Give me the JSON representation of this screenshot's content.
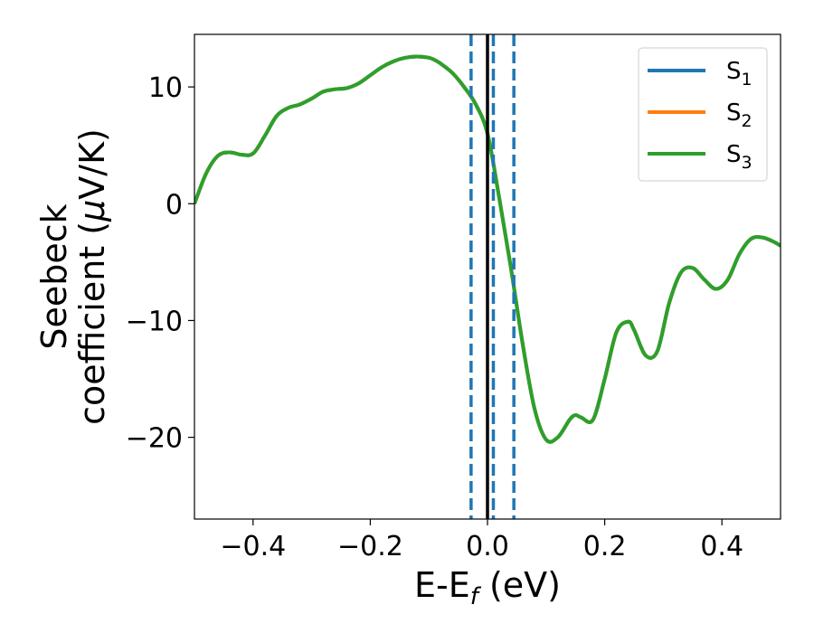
{
  "chart_data": {
    "type": "line",
    "xlabel": {
      "main": "E-E",
      "sub": "f",
      "tail": " (eV)"
    },
    "ylabel": {
      "line1": "Seebeck",
      "line2_pre": "coefficient  (",
      "line2_mu": "μ",
      "line2_post": "V/K)"
    },
    "xlim": [
      -0.5,
      0.5
    ],
    "ylim": [
      -27,
      14.5
    ],
    "xticks": [
      -0.4,
      -0.2,
      0.0,
      0.2,
      0.4
    ],
    "xtick_labels": [
      "−0.4",
      "−0.2",
      "0.0",
      "0.2",
      "0.4"
    ],
    "yticks": [
      -20,
      -10,
      0,
      10
    ],
    "ytick_labels": [
      "−20",
      "−10",
      "0",
      "10"
    ],
    "legend_position": "top-right",
    "series": [
      {
        "name": "S",
        "sub": "1",
        "color": "#1f77b4"
      },
      {
        "name": "S",
        "sub": "2",
        "color": "#ff7f0e"
      },
      {
        "name": "S",
        "sub": "3",
        "color": "#2ca02c"
      }
    ],
    "curve": {
      "x": [
        -0.5,
        -0.48,
        -0.46,
        -0.44,
        -0.42,
        -0.4,
        -0.38,
        -0.36,
        -0.34,
        -0.32,
        -0.3,
        -0.28,
        -0.26,
        -0.24,
        -0.22,
        -0.2,
        -0.18,
        -0.16,
        -0.14,
        -0.12,
        -0.1,
        -0.09,
        -0.08,
        -0.06,
        -0.04,
        -0.02,
        0.0,
        0.02,
        0.04,
        0.06,
        0.08,
        0.1,
        0.12,
        0.14,
        0.15,
        0.16,
        0.18,
        0.2,
        0.22,
        0.24,
        0.25,
        0.27,
        0.29,
        0.31,
        0.33,
        0.35,
        0.37,
        0.39,
        0.41,
        0.43,
        0.45,
        0.47,
        0.49,
        0.5
      ],
      "y": [
        0.0,
        2.6,
        4.1,
        4.4,
        4.2,
        4.3,
        5.8,
        7.5,
        8.2,
        8.5,
        9.0,
        9.6,
        9.8,
        9.9,
        10.3,
        11.0,
        11.7,
        12.2,
        12.5,
        12.6,
        12.5,
        12.3,
        12.0,
        11.2,
        10.0,
        8.5,
        6.0,
        0.5,
        -5.5,
        -12.0,
        -17.5,
        -20.2,
        -20.0,
        -18.5,
        -18.1,
        -18.3,
        -18.5,
        -15.0,
        -11.0,
        -10.1,
        -10.8,
        -13.0,
        -12.6,
        -8.5,
        -5.9,
        -5.5,
        -6.5,
        -7.3,
        -6.5,
        -4.3,
        -3.0,
        -2.9,
        -3.3,
        -3.6
      ]
    },
    "vlines": [
      {
        "x": -0.028,
        "color": "#1f77b4",
        "style": "dashed"
      },
      {
        "x": 0.01,
        "color": "#1f77b4",
        "style": "dashed"
      },
      {
        "x": 0.045,
        "color": "#1f77b4",
        "style": "dashed"
      },
      {
        "x": 0.0,
        "color": "#000000",
        "style": "solid"
      }
    ]
  }
}
